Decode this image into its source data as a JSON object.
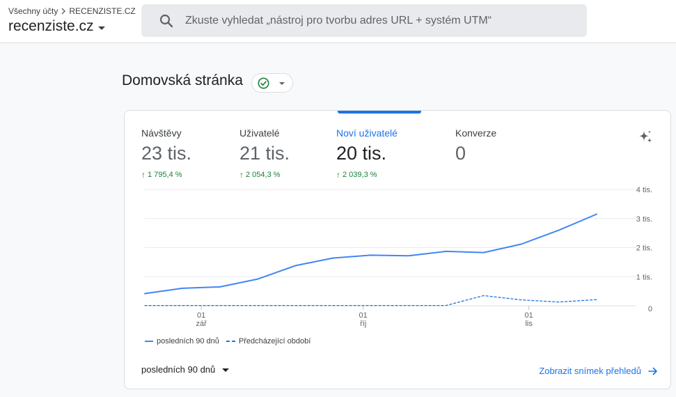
{
  "header": {
    "breadcrumb": {
      "all_accounts": "Všechny účty",
      "property": "RECENZISTE.CZ"
    },
    "account_name": "recenziste.cz",
    "search_placeholder": "Zkuste vyhledat „nástroj pro tvorbu adres URL + systém UTM“"
  },
  "page": {
    "title": "Domovská stránka"
  },
  "metrics": [
    {
      "label": "Návštěvy",
      "value": "23 tis.",
      "delta": "1 795,4 %"
    },
    {
      "label": "Uživatelé",
      "value": "21 tis.",
      "delta": "2 054,3 %"
    },
    {
      "label": "Noví uživatelé",
      "value": "20 tis.",
      "delta": "2 039,3 %",
      "active": true
    },
    {
      "label": "Konverze",
      "value": "0",
      "delta": ""
    }
  ],
  "chart_data": {
    "type": "line",
    "x": [
      0,
      1,
      2,
      3,
      4,
      5,
      6,
      7,
      8,
      9,
      10,
      11,
      12
    ],
    "x_ticks": [
      {
        "index": 1.5,
        "day": "01",
        "month": "zář"
      },
      {
        "index": 5.8,
        "day": "01",
        "month": "říj"
      },
      {
        "index": 10.2,
        "day": "01",
        "month": "lis"
      }
    ],
    "y_ticks": [
      "4 tis.",
      "3 tis.",
      "2 tis.",
      "1 tis.",
      "0"
    ],
    "ylim": [
      0,
      4000
    ],
    "series": [
      {
        "name": "posledních 90 dnů",
        "style": "solid",
        "color": "#4285f4",
        "values": [
          420,
          600,
          650,
          920,
          1380,
          1640,
          1740,
          1720,
          1870,
          1830,
          2120,
          2600,
          3150
        ]
      },
      {
        "name": "Předcházející období",
        "style": "dashed",
        "color": "#1a73e8",
        "values": [
          10,
          10,
          10,
          10,
          10,
          10,
          10,
          10,
          10,
          350,
          200,
          130,
          210
        ]
      }
    ],
    "grid": true,
    "legend_position": "bottom-left"
  },
  "footer": {
    "date_range": "posledních 90 dnů",
    "snapshot_link": "Zobrazit snímek přehledů"
  }
}
